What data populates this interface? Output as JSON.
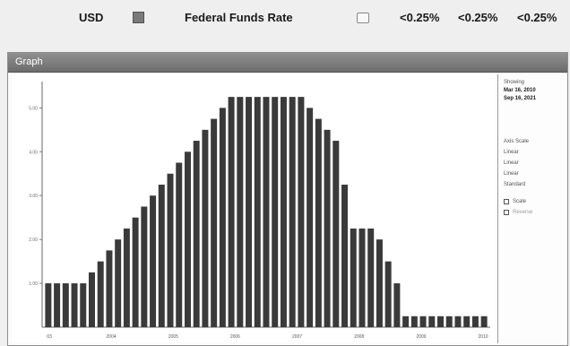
{
  "quote": {
    "currency": "USD",
    "rate_name": "Federal Funds Rate",
    "values": [
      "<0.25%",
      "<0.25%",
      "<0.25%"
    ]
  },
  "window": {
    "title": "Graph"
  },
  "side_panel": {
    "showing_label": "Showing",
    "date_from": "Mar 16, 2010",
    "date_to": "Sep 16, 2021",
    "axis_label": "Axis Scale",
    "options": [
      "Linear",
      "Linear",
      "Linear",
      "Standard"
    ],
    "checkbox1": "Scale",
    "checkbox2": "Reverse"
  },
  "chart_data": {
    "type": "bar",
    "x_tick_labels": [
      "03",
      "2004",
      "2005",
      "2006",
      "2007",
      "2008",
      "2009",
      "2010"
    ],
    "y_tick_labels": [
      "1.00",
      "2.00",
      "3.00",
      "4.00",
      "5.00"
    ],
    "ylim": [
      0,
      5.6
    ],
    "values": [
      1.0,
      1.0,
      1.0,
      1.0,
      1.0,
      1.25,
      1.5,
      1.75,
      2.0,
      2.25,
      2.5,
      2.75,
      3.0,
      3.25,
      3.5,
      3.75,
      4.0,
      4.25,
      4.5,
      4.75,
      5.0,
      5.25,
      5.25,
      5.25,
      5.25,
      5.25,
      5.25,
      5.25,
      5.25,
      5.25,
      5.0,
      4.75,
      4.5,
      4.25,
      3.25,
      2.25,
      2.25,
      2.25,
      2.0,
      1.5,
      1.0,
      0.25,
      0.25,
      0.25,
      0.25,
      0.25,
      0.25,
      0.25,
      0.25,
      0.25,
      0.25
    ],
    "bar_color": "#3d3d3d",
    "grid": false
  }
}
